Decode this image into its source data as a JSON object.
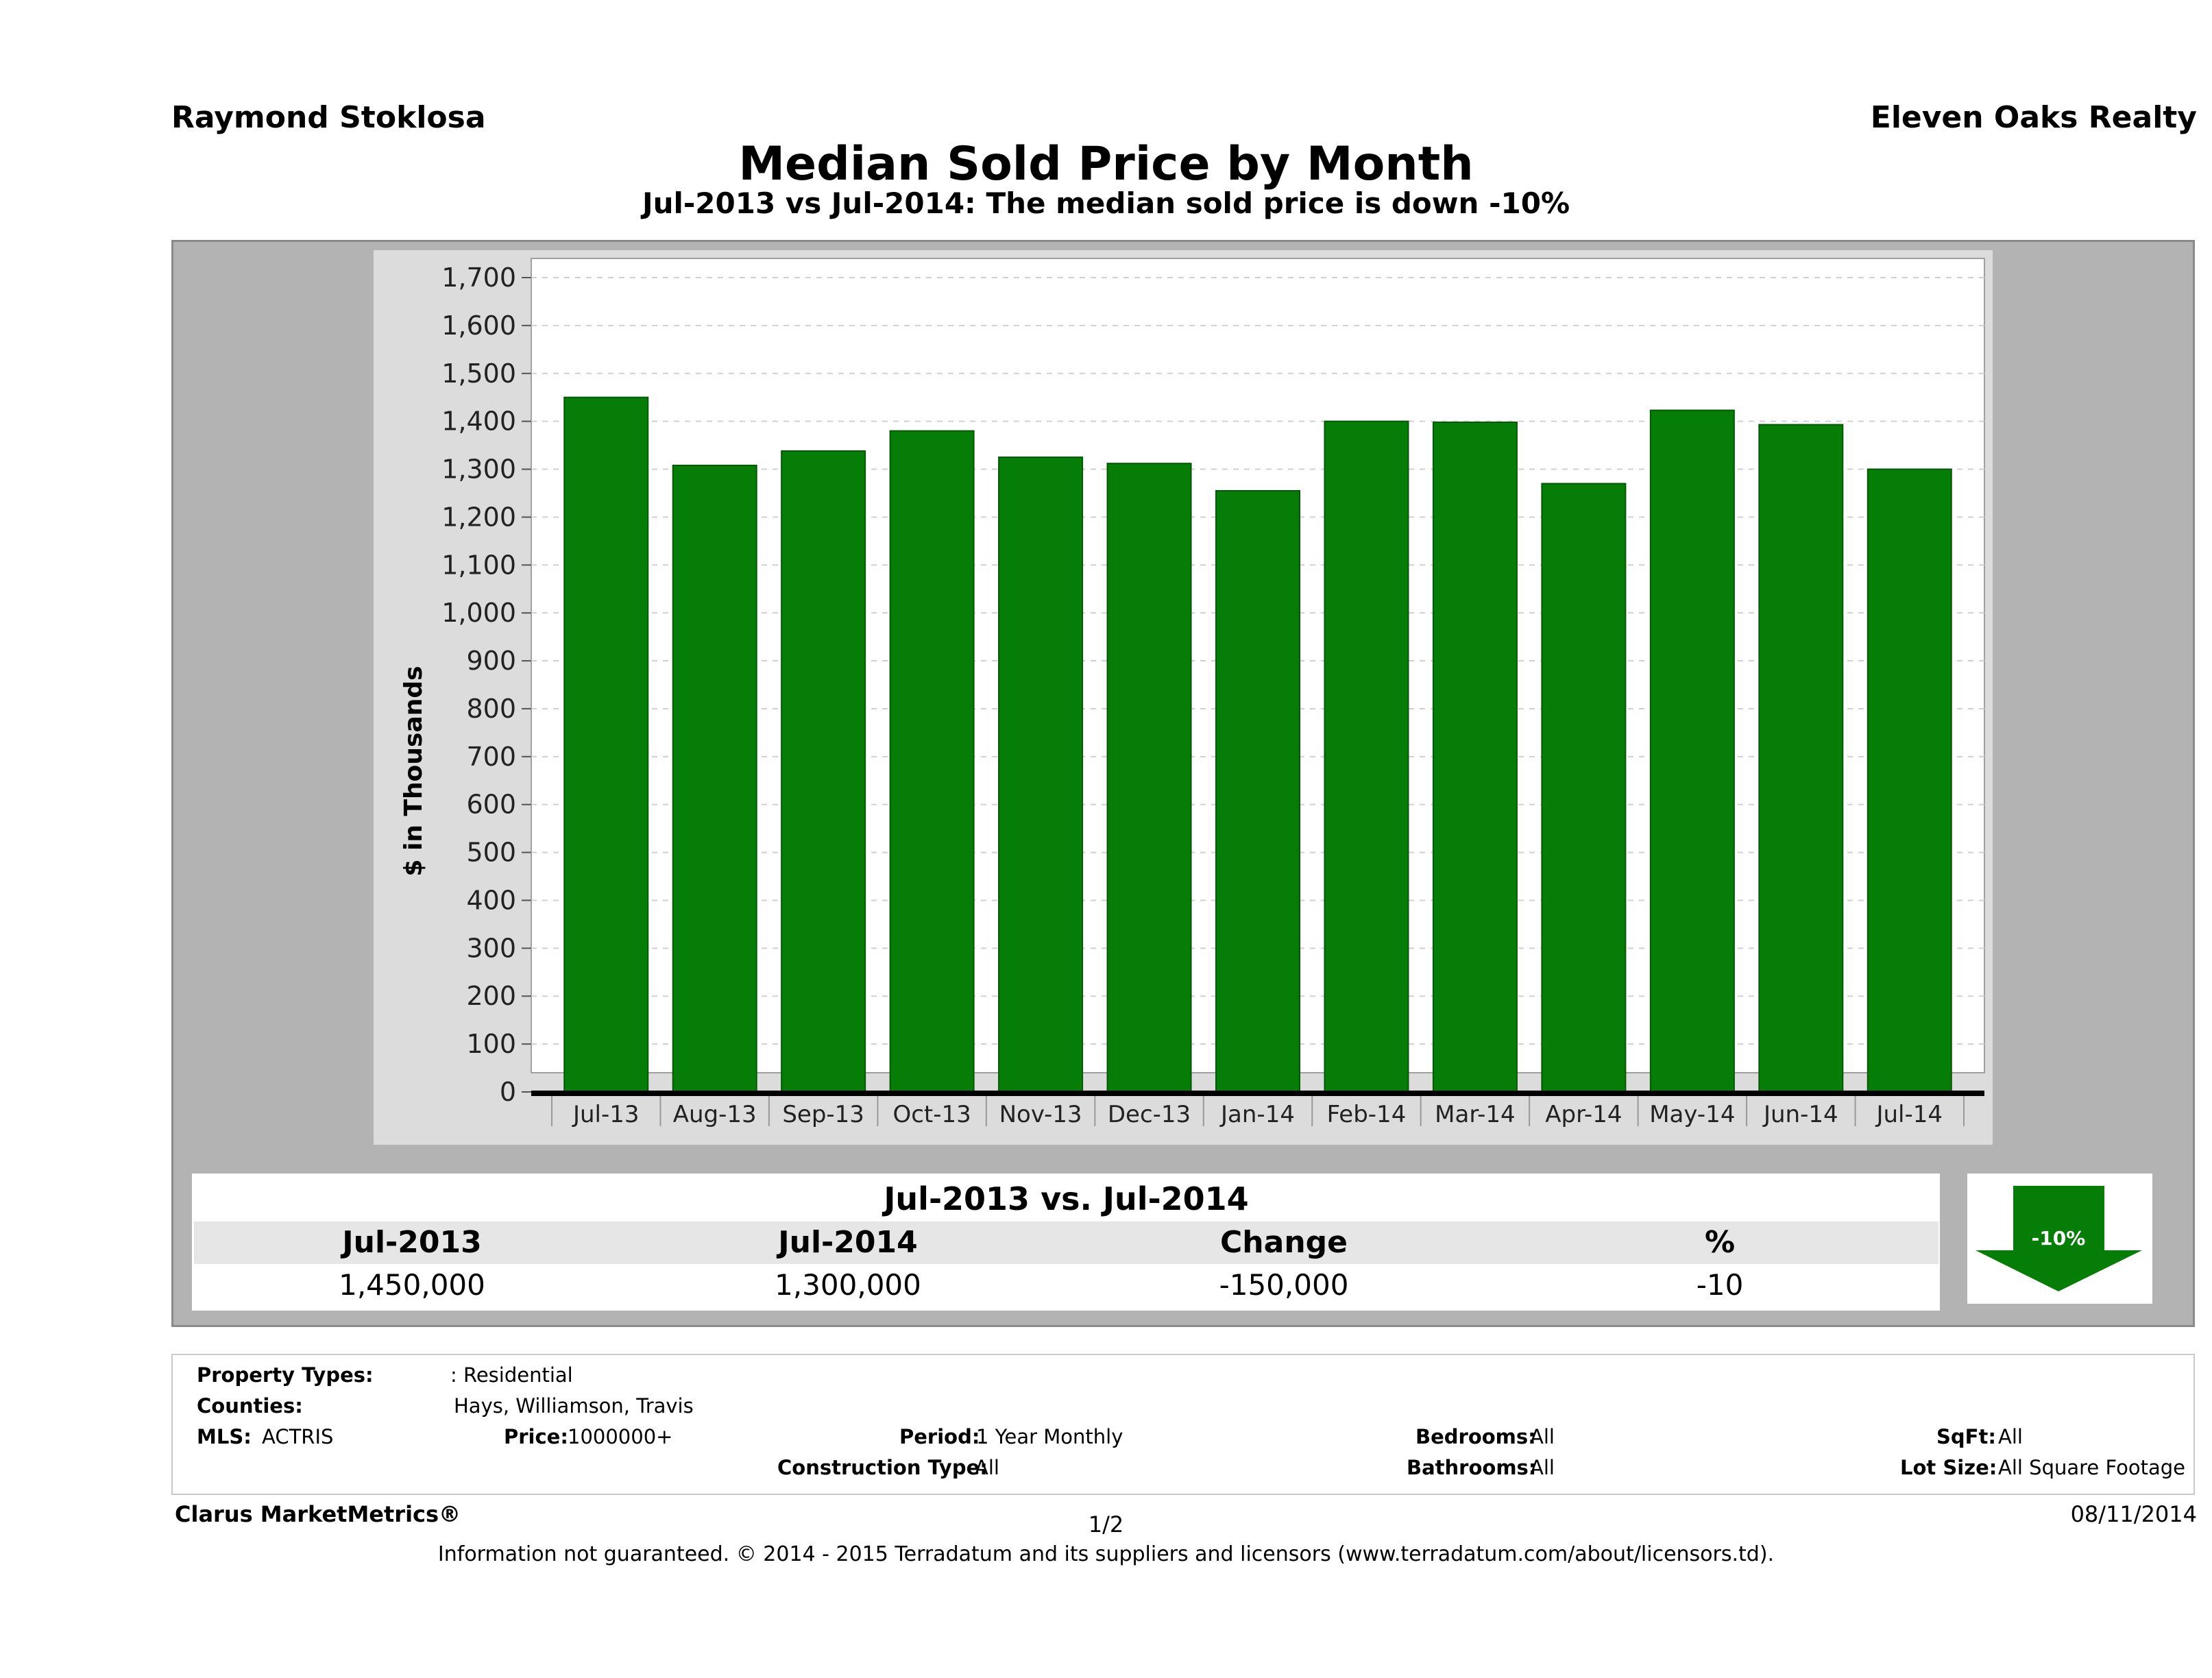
{
  "header": {
    "agent": "Raymond Stoklosa",
    "company": "Eleven Oaks Realty",
    "title": "Median Sold Price by Month",
    "subtitle": "Jul-2013 vs Jul-2014: The median sold price is down -10%"
  },
  "chart_data": {
    "type": "bar",
    "title": "Median Sold Price by Month",
    "ylabel": "$ in Thousands",
    "xlabel": "",
    "ylim": [
      0,
      1700
    ],
    "yticks": [
      "0",
      "100",
      "200",
      "300",
      "400",
      "500",
      "600",
      "700",
      "800",
      "900",
      "1,000",
      "1,100",
      "1,200",
      "1,300",
      "1,400",
      "1,500",
      "1,600",
      "1,700"
    ],
    "grid": true,
    "categories": [
      "Jul-13",
      "Aug-13",
      "Sep-13",
      "Oct-13",
      "Nov-13",
      "Dec-13",
      "Jan-14",
      "Feb-14",
      "Mar-14",
      "Apr-14",
      "May-14",
      "Jun-14",
      "Jul-14"
    ],
    "values": [
      1450,
      1308,
      1338,
      1380,
      1325,
      1312,
      1255,
      1400,
      1398,
      1270,
      1423,
      1393,
      1300
    ],
    "bar_color": "#067d06"
  },
  "comparison": {
    "title": "Jul-2013 vs. Jul-2014",
    "headers": [
      "Jul-2013",
      "Jul-2014",
      "Change",
      "%"
    ],
    "values": [
      "1,450,000",
      "1,300,000",
      "-150,000",
      "-10"
    ],
    "badge": "-10%",
    "badge_color": "#067d06"
  },
  "info": {
    "property_types_label": "Property Types:",
    "property_types_value": ": Residential",
    "counties_label": "Counties:",
    "counties_value": "Hays, Williamson, Travis",
    "mls_label": "MLS:",
    "mls_value": "ACTRIS",
    "price_label": "Price:",
    "price_value": "1000000+",
    "period_label": "Period:",
    "period_value": "1 Year Monthly",
    "construction_label": "Construction Type:",
    "construction_value": "All",
    "bedrooms_label": "Bedrooms:",
    "bedrooms_value": "All",
    "bathrooms_label": "Bathrooms:",
    "bathrooms_value": "All",
    "sqft_label": "SqFt:",
    "sqft_value": "All",
    "lotsize_label": "Lot Size:",
    "lotsize_value": "All Square Footage"
  },
  "footer": {
    "brand": "Clarus MarketMetrics®",
    "page": "1/2",
    "date": "08/11/2014",
    "disclaimer": "Information not guaranteed. © 2014 - 2015 Terradatum and its suppliers and licensors (www.terradatum.com/about/licensors.td)."
  }
}
